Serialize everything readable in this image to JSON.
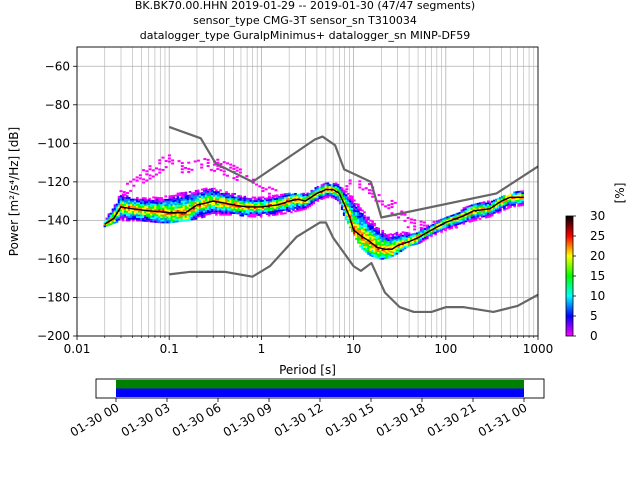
{
  "header": {
    "title_line1": "BK.BK70.00.HHN   2019-01-29 -- 2019-01-30  (47/47 segments)",
    "title_line2": "sensor_type CMG-3T sensor_sn T310034",
    "title_line3": "datalogger_type GuralpMinimus+ datalogger_sn MINP-DF59"
  },
  "chart_data": [
    {
      "type": "heatmap",
      "title": "BK.BK70.00.HHN   2019-01-29 -- 2019-01-30  (47/47 segments)",
      "xlabel": "Period [s]",
      "ylabel": "Power [m²/s⁴/Hz] [dB]",
      "xscale": "log",
      "xlim": [
        0.01,
        1000
      ],
      "ylim": [
        -200,
        -50
      ],
      "x_tick_labels": [
        "0.01",
        "0.1",
        "1",
        "10",
        "100",
        "1000"
      ],
      "y_tick_labels": [
        "-60",
        "-80",
        "-100",
        "-120",
        "-140",
        "-160",
        "-180",
        "-200"
      ],
      "grid": true,
      "colorbar": {
        "label": "[%]",
        "range": [
          0,
          30
        ],
        "tick_labels": [
          "0",
          "5",
          "10",
          "15",
          "20",
          "25",
          "30"
        ],
        "colormap": [
          "#ff00ff",
          "#0000ff",
          "#00ffff",
          "#00ff00",
          "#ffff00",
          "#ff0000",
          "#000000"
        ]
      },
      "noise_models": [
        {
          "name": "NHNM",
          "color": "#666666",
          "x": [
            0.1,
            0.22,
            0.32,
            0.8,
            3.8,
            4.6,
            6.3,
            7.9,
            15.4,
            20,
            354.8,
            1000
          ],
          "y": [
            -91.5,
            -97.4,
            -110.5,
            -120,
            -98,
            -96.5,
            -101,
            -113.5,
            -120,
            -138.5,
            -126,
            -112
          ]
        },
        {
          "name": "NLNM",
          "color": "#666666",
          "x": [
            0.1,
            0.17,
            0.4,
            0.8,
            1.24,
            2.4,
            4.3,
            5,
            6,
            10,
            12,
            15.6,
            21.9,
            31.6,
            45,
            70,
            101,
            154,
            328,
            600,
            1000
          ],
          "y": [
            -168,
            -166.7,
            -166.7,
            -169.2,
            -163.7,
            -148.6,
            -141.1,
            -141.1,
            -149,
            -163.8,
            -166.2,
            -162.1,
            -177.5,
            -185,
            -187.5,
            -187.5,
            -185,
            -185,
            -187.5,
            -184.4,
            -178.6
          ]
        }
      ],
      "mode_curve": {
        "x": [
          0.02,
          0.025,
          0.03,
          0.04,
          0.06,
          0.08,
          0.1,
          0.15,
          0.2,
          0.25,
          0.3,
          0.4,
          0.5,
          0.7,
          1,
          1.5,
          2,
          2.5,
          3,
          4,
          5,
          6,
          7,
          8,
          9,
          10,
          12,
          15,
          18,
          22,
          26,
          30,
          40,
          50,
          70,
          100,
          150,
          200,
          300,
          400,
          500,
          700
        ],
        "y": [
          -142,
          -139,
          -133,
          -134,
          -135,
          -135.5,
          -136,
          -136,
          -132,
          -131,
          -130,
          -131,
          -132,
          -133,
          -133,
          -132,
          -130,
          -129,
          -130,
          -126,
          -124,
          -124,
          -126,
          -132,
          -138,
          -145,
          -148,
          -151,
          -154,
          -155,
          -155,
          -153,
          -151,
          -149,
          -145,
          -141,
          -138,
          -135,
          -134,
          -130,
          -128,
          -128
        ]
      },
      "psd_spread": {
        "x": [
          0.02,
          0.03,
          0.05,
          0.08,
          0.1,
          0.15,
          0.2,
          0.3,
          0.5,
          0.8,
          1,
          2,
          3,
          4,
          5,
          6,
          7,
          8,
          10,
          12,
          15,
          20,
          25,
          30,
          40,
          50,
          70,
          100,
          150,
          200,
          300,
          500,
          700
        ],
        "upper": [
          -140,
          -126,
          -128,
          -128,
          -127,
          -125,
          -124,
          -123,
          -126,
          -128,
          -128,
          -126,
          -126,
          -122,
          -120,
          -120,
          -121,
          -124,
          -128,
          -133,
          -139,
          -145,
          -147,
          -146,
          -146,
          -145,
          -142,
          -138,
          -134,
          -131,
          -130,
          -126,
          -124
        ],
        "lower": [
          -143,
          -140,
          -140,
          -141,
          -141,
          -140,
          -139,
          -137,
          -137,
          -138,
          -138,
          -136,
          -134,
          -130,
          -128,
          -128,
          -130,
          -138,
          -147,
          -154,
          -158,
          -160,
          -159,
          -157,
          -153,
          -152,
          -148,
          -145,
          -142,
          -140,
          -138,
          -133,
          -132
        ]
      },
      "outlier_band": {
        "x": [
          0.03,
          0.05,
          0.08,
          0.1,
          0.15,
          0.2,
          0.3,
          0.5,
          1,
          2,
          3,
          5,
          7,
          10,
          15,
          20,
          30,
          40,
          60,
          100,
          150
        ],
        "upper": [
          -124,
          -114,
          -108,
          -106,
          -110,
          -108,
          -108,
          -110,
          -120,
          -128,
          -129,
          -121,
          -121,
          -118,
          -121,
          -127,
          -131,
          -139,
          -140,
          -141,
          -140
        ],
        "lower": [
          -128,
          -121,
          -115,
          -111,
          -116,
          -112,
          -114,
          -118,
          -126,
          -132,
          -133,
          -125,
          -127,
          -121,
          -126,
          -133,
          -138,
          -144,
          -146,
          -145,
          -143
        ]
      }
    },
    {
      "type": "bar",
      "title": "",
      "x_tick_labels": [
        "01-30 00",
        "01-30 03",
        "01-30 06",
        "01-30 09",
        "01-30 12",
        "01-30 15",
        "01-30 18",
        "01-30 21",
        "01-31 00"
      ],
      "coverage_start": "01-30 00",
      "coverage_end": "01-31 00",
      "series": [
        {
          "color": "#008000",
          "values": [
            1
          ]
        },
        {
          "color": "#0000ff",
          "values": [
            1
          ]
        }
      ]
    }
  ]
}
